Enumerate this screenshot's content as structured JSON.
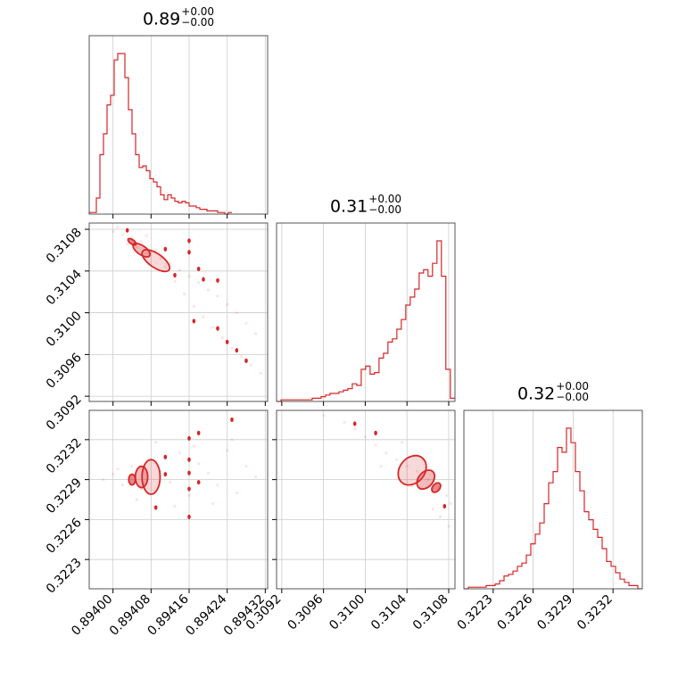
{
  "chart_data": {
    "type": "corner",
    "color": "#d62728",
    "parameters": [
      {
        "title_value": "0.89",
        "title_plus": "+0.00",
        "title_minus": "−0.00",
        "range": [
          0.89395,
          0.894325
        ],
        "ticks": [
          0.894,
          0.89408,
          0.89416,
          0.89424,
          0.89432
        ],
        "tick_labels": [
          "0.89400",
          "0.89408",
          "0.89416",
          "0.89424",
          "0.89432"
        ],
        "histogram": {
          "bin_start": 0.89395,
          "bin_width": 7.5e-06,
          "counts": [
            1,
            1,
            10,
            37,
            50,
            68,
            74,
            96,
            100,
            100,
            85,
            65,
            50,
            37,
            29,
            30,
            27,
            22,
            20,
            17,
            12,
            9,
            12,
            10,
            8,
            7,
            8,
            7,
            5,
            5,
            4,
            3,
            3,
            2,
            2,
            2,
            1,
            1,
            0,
            1
          ]
        }
      },
      {
        "title_value": "0.31",
        "title_plus": "+0.00",
        "title_minus": "−0.00",
        "range": [
          0.30915,
          0.31086
        ],
        "ticks": [
          0.3092,
          0.3096,
          0.31,
          0.3104,
          0.3108
        ],
        "tick_labels": [
          "0.3092",
          "0.3096",
          "0.3100",
          "0.3104",
          "0.3108"
        ],
        "histogram": {
          "bin_start": 0.30915,
          "bin_width": 4.27e-05,
          "counts": [
            0,
            1,
            1,
            1,
            1,
            1,
            1,
            1,
            2,
            2,
            3,
            4,
            5,
            5,
            6,
            7,
            8,
            11,
            10,
            20,
            22,
            17,
            18,
            27,
            30,
            37,
            39,
            45,
            51,
            60,
            65,
            70,
            80,
            82,
            78,
            86,
            100,
            78,
            20,
            2
          ]
        }
      },
      {
        "title_value": "0.32",
        "title_plus": "+0.00",
        "title_minus": "−0.00",
        "range": [
          0.32208,
          0.32342
        ],
        "ticks": [
          0.3223,
          0.3226,
          0.3229,
          0.3232
        ],
        "tick_labels": [
          "0.3223",
          "0.3226",
          "0.3229",
          "0.3232"
        ],
        "histogram": {
          "bin_start": 0.32208,
          "bin_width": 3.35e-05,
          "counts": [
            0,
            1,
            1,
            1,
            1,
            2,
            2,
            3,
            5,
            8,
            9,
            11,
            14,
            16,
            21,
            28,
            34,
            41,
            53,
            66,
            73,
            88,
            85,
            100,
            91,
            73,
            61,
            48,
            43,
            37,
            32,
            25,
            17,
            14,
            10,
            6,
            4,
            2,
            2,
            0
          ]
        }
      }
    ],
    "pairs": [
      {
        "x_param": 0,
        "y_param": 1,
        "samples": [
          [
            0.894,
            0.31078
          ],
          [
            0.89402,
            0.31075
          ],
          [
            0.89404,
            0.31072
          ],
          [
            0.89406,
            0.31068
          ],
          [
            0.89405,
            0.31063
          ],
          [
            0.89408,
            0.31058
          ],
          [
            0.8941,
            0.31052
          ],
          [
            0.89412,
            0.31047
          ],
          [
            0.89414,
            0.31041
          ],
          [
            0.89416,
            0.31035
          ],
          [
            0.89418,
            0.31029
          ],
          [
            0.8942,
            0.31022
          ],
          [
            0.89422,
            0.31016
          ],
          [
            0.89424,
            0.31008
          ],
          [
            0.89426,
            0.31
          ],
          [
            0.89428,
            0.3099
          ],
          [
            0.8943,
            0.3098
          ],
          [
            0.89401,
            0.31082
          ],
          [
            0.89403,
            0.31066
          ],
          [
            0.89407,
            0.31074
          ],
          [
            0.89409,
            0.3106
          ],
          [
            0.89411,
            0.31044
          ],
          [
            0.89413,
            0.3103
          ],
          [
            0.89415,
            0.31018
          ],
          [
            0.89417,
            0.31006
          ],
          [
            0.89419,
            0.30996
          ],
          [
            0.89421,
            0.30986
          ],
          [
            0.89423,
            0.30976
          ],
          [
            0.89425,
            0.30966
          ],
          [
            0.89427,
            0.30958
          ],
          [
            0.89429,
            0.3095
          ],
          [
            0.89431,
            0.30942
          ]
        ],
        "contours": [
          {
            "level": 0.39,
            "center": [
              0.89404,
              0.31068
            ],
            "rx": 4.5e-06,
            "ry": 4.5e-05,
            "tilt": -55
          },
          {
            "level": 0.86,
            "center": [
              0.89406,
              0.3106
            ],
            "rx": 9.5e-06,
            "ry": 9.5e-05,
            "tilt": -55
          },
          {
            "level": 0.99,
            "center": [
              0.89409,
              0.3105
            ],
            "rx": 1.45e-05,
            "ry": 0.000155,
            "tilt": -55
          }
        ],
        "outliers": [
          [
            0.89403,
            0.31079
          ],
          [
            0.89411,
            0.31061
          ],
          [
            0.89416,
            0.31069
          ],
          [
            0.89416,
            0.31058
          ],
          [
            0.89413,
            0.31036
          ],
          [
            0.89418,
            0.31042
          ],
          [
            0.89419,
            0.31032
          ],
          [
            0.89422,
            0.31031
          ],
          [
            0.89417,
            0.30992
          ],
          [
            0.89422,
            0.30985
          ],
          [
            0.89424,
            0.30972
          ],
          [
            0.89426,
            0.30964
          ],
          [
            0.89428,
            0.30954
          ]
        ]
      },
      {
        "x_param": 0,
        "y_param": 2,
        "samples": [
          [
            0.89398,
            0.3229
          ],
          [
            0.894,
            0.32294
          ],
          [
            0.89402,
            0.32286
          ],
          [
            0.89404,
            0.323
          ],
          [
            0.89406,
            0.32283
          ],
          [
            0.89408,
            0.32305
          ],
          [
            0.8941,
            0.32296
          ],
          [
            0.89412,
            0.32288
          ],
          [
            0.89414,
            0.3231
          ],
          [
            0.89416,
            0.32278
          ],
          [
            0.89418,
            0.32302
          ],
          [
            0.8942,
            0.32295
          ],
          [
            0.89422,
            0.32286
          ],
          [
            0.89424,
            0.32312
          ],
          [
            0.89426,
            0.3228
          ],
          [
            0.89428,
            0.323
          ],
          [
            0.8943,
            0.32292
          ],
          [
            0.89401,
            0.32298
          ],
          [
            0.89405,
            0.32275
          ],
          [
            0.89409,
            0.32318
          ],
          [
            0.89413,
            0.3227
          ],
          [
            0.89417,
            0.32315
          ],
          [
            0.89421,
            0.32272
          ],
          [
            0.89425,
            0.3232
          ]
        ],
        "contours": [
          {
            "level": 0.39,
            "center": [
              0.89404,
              0.3229
            ],
            "rx": 7e-06,
            "ry": 4e-05,
            "tilt": 0
          },
          {
            "level": 0.86,
            "center": [
              0.89406,
              0.32292
            ],
            "rx": 1.3e-05,
            "ry": 8e-05,
            "tilt": 0
          },
          {
            "level": 0.99,
            "center": [
              0.89408,
              0.32292
            ],
            "rx": 1.9e-05,
            "ry": 0.00013,
            "tilt": 0
          }
        ],
        "outliers": [
          [
            0.89411,
            0.32307
          ],
          [
            0.89411,
            0.32294
          ],
          [
            0.89416,
            0.32321
          ],
          [
            0.89416,
            0.32305
          ],
          [
            0.89416,
            0.32295
          ],
          [
            0.89416,
            0.32283
          ],
          [
            0.89416,
            0.32262
          ],
          [
            0.89418,
            0.32325
          ],
          [
            0.89418,
            0.32288
          ],
          [
            0.89425,
            0.32335
          ],
          [
            0.89409,
            0.32269
          ]
        ]
      },
      {
        "x_param": 1,
        "y_param": 2,
        "samples": [
          [
            0.3098,
            0.32333
          ],
          [
            0.3099,
            0.32328
          ],
          [
            0.31,
            0.32322
          ],
          [
            0.3101,
            0.32316
          ],
          [
            0.3102,
            0.3231
          ],
          [
            0.3103,
            0.32305
          ],
          [
            0.3104,
            0.323
          ],
          [
            0.3105,
            0.32296
          ],
          [
            0.3106,
            0.3229
          ],
          [
            0.3107,
            0.32284
          ],
          [
            0.31078,
            0.32278
          ],
          [
            0.31082,
            0.32272
          ],
          [
            0.3096,
            0.32338
          ],
          [
            0.31015,
            0.323
          ],
          [
            0.31045,
            0.32285
          ],
          [
            0.31065,
            0.32268
          ],
          [
            0.31072,
            0.32262
          ],
          [
            0.3108,
            0.32255
          ],
          [
            0.31035,
            0.32318
          ],
          [
            0.31055,
            0.32305
          ]
        ],
        "contours": [
          {
            "level": 0.39,
            "center": [
              0.31068,
              0.32284
            ],
            "rx": 3.5e-05,
            "ry": 4e-05,
            "tilt": 40
          },
          {
            "level": 0.86,
            "center": [
              0.31058,
              0.3229
            ],
            "rx": 7e-05,
            "ry": 8e-05,
            "tilt": 40
          },
          {
            "level": 0.99,
            "center": [
              0.31045,
              0.32297
            ],
            "rx": 0.00012,
            "ry": 0.00012,
            "tilt": 40
          }
        ],
        "outliers": [
          [
            0.3099,
            0.32332
          ],
          [
            0.3101,
            0.32325
          ],
          [
            0.31076,
            0.3227
          ]
        ]
      }
    ],
    "grid": true,
    "legend": "none"
  }
}
